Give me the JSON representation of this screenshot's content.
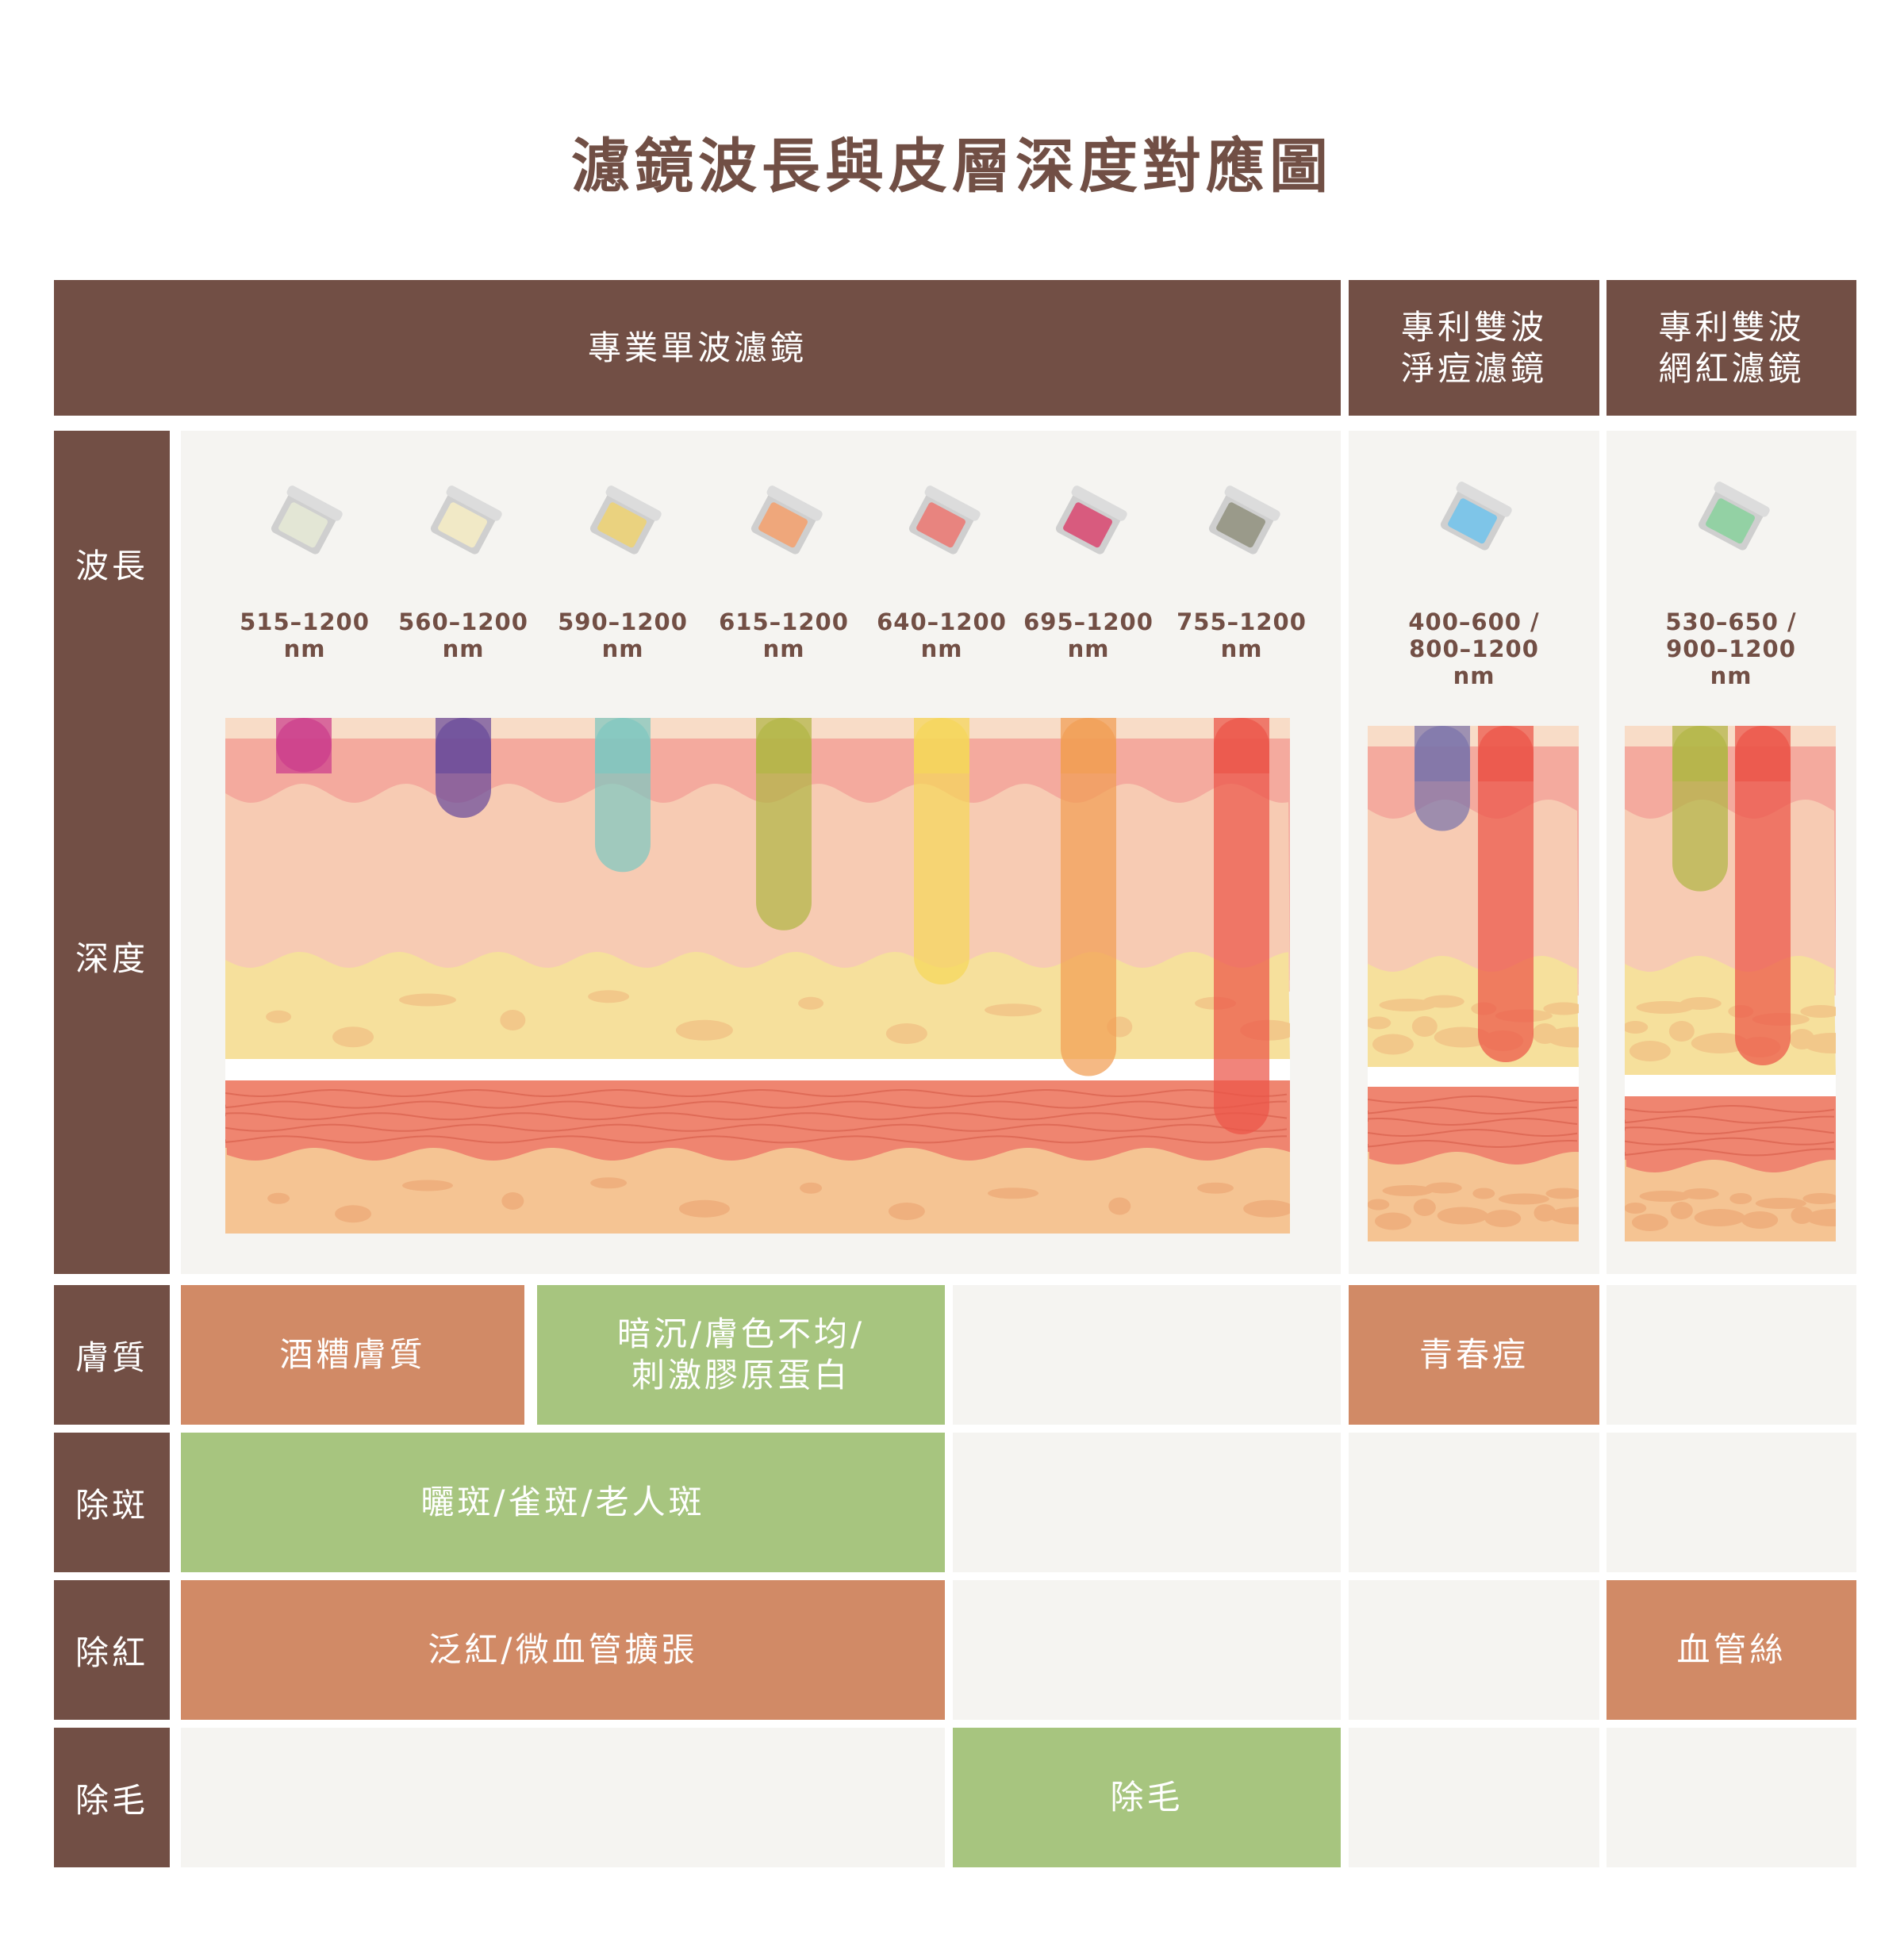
{
  "title": "濾鏡波長與皮層深度對應圖",
  "columns": [
    {
      "label": "專業單波濾鏡"
    },
    {
      "label": "專利雙波\n淨痘濾鏡"
    },
    {
      "label": "專利雙波\n網紅濾鏡"
    }
  ],
  "rows": {
    "wavelength": "波長",
    "depth": "深度",
    "skin": "膚質",
    "spots": "除斑",
    "redness": "除紅",
    "hair": "除毛"
  },
  "filters": [
    {
      "wavelength": "515–1200\nnm",
      "color": "#e3e6d5",
      "beam_color": "#cc3d8c",
      "depth": 0.13
    },
    {
      "wavelength": "560–1200\nnm",
      "color": "#f1e9c6",
      "beam_color": "#6a4b9b",
      "depth": 0.24
    },
    {
      "wavelength": "590–1200\nnm",
      "color": "#ead27f",
      "beam_color": "#7ec8c0",
      "depth": 0.37
    },
    {
      "wavelength": "615–1200\nnm",
      "color": "#efa77b",
      "beam_color": "#b2b645",
      "depth": 0.51
    },
    {
      "wavelength": "640–1200\nnm",
      "color": "#e8847f",
      "beam_color": "#f5d75a",
      "depth": 0.64
    },
    {
      "wavelength": "695–1200\nnm",
      "color": "#d85b7e",
      "beam_color": "#f19e55",
      "depth": 0.86
    },
    {
      "wavelength": "755–1200\nnm",
      "color": "#9a9a8a",
      "beam_color": "#ec5548",
      "depth": 1.0
    }
  ],
  "dual_filters": [
    {
      "wavelength": "400–600 /\n800–1200\nnm",
      "color": "#7ec5e8",
      "beams": [
        {
          "color": "#7b75ab",
          "depth": 0.25
        },
        {
          "color": "#ec5548",
          "depth": 0.8
        }
      ]
    },
    {
      "wavelength": "530–650 /\n900–1200\nnm",
      "color": "#93d1a4",
      "beams": [
        {
          "color": "#b2b645",
          "depth": 0.39
        },
        {
          "color": "#ec5548",
          "depth": 0.8
        }
      ]
    }
  ],
  "cells": {
    "skin_rosacea": "酒糟膚質",
    "skin_dull": "暗沉/膚色不均/\n刺激膠原蛋白",
    "skin_acne": "青春痘",
    "spots": "曬斑/雀斑/老人斑",
    "redness": "泛紅/微血管擴張",
    "redness_vessel": "血管絲",
    "hair": "除毛"
  },
  "colors": {
    "header_brown": "#724f45",
    "cell_orange": "#d18a66",
    "cell_green": "#a7c57f",
    "panel_bg": "#f5f4f1"
  }
}
